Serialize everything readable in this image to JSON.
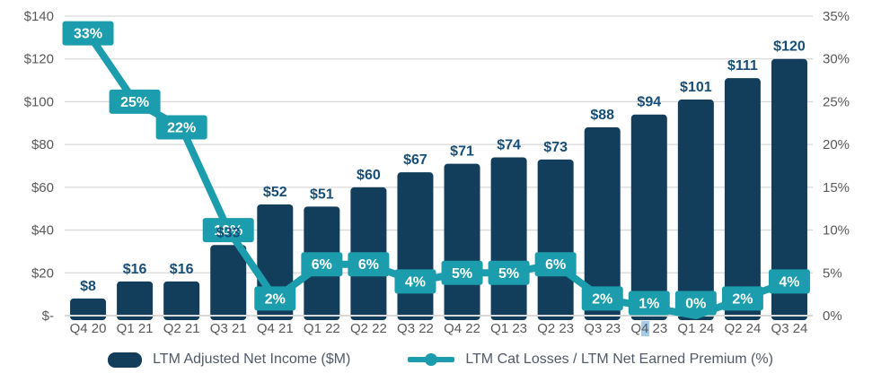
{
  "chart_data": {
    "type": "combo",
    "title": "",
    "categories": [
      "Q4 20",
      "Q1 21",
      "Q2 21",
      "Q3 21",
      "Q4 21",
      "Q1 22",
      "Q2 22",
      "Q3 22",
      "Q4 22",
      "Q1 23",
      "Q2 23",
      "Q3 23",
      "Q4 23",
      "Q1 24",
      "Q2 24",
      "Q3 24"
    ],
    "series": [
      {
        "name": "LTM Adjusted Net Income ($M)",
        "type": "bar",
        "axis": "left",
        "color": "#123E5B",
        "values": [
          8,
          16,
          16,
          33,
          52,
          51,
          60,
          67,
          71,
          74,
          73,
          88,
          94,
          101,
          111,
          120
        ],
        "labels": [
          "$8",
          "$16",
          "$16",
          "$33",
          "$52",
          "$51",
          "$60",
          "$67",
          "$71",
          "$74",
          "$73",
          "$88",
          "$94",
          "$101",
          "$111",
          "$120"
        ]
      },
      {
        "name": "LTM Cat Losses / LTM Net Earned Premium (%)",
        "type": "line",
        "axis": "right",
        "color": "#1B9DAD",
        "values": [
          33,
          25,
          22,
          10,
          2,
          6,
          6,
          4,
          5,
          5,
          6,
          2,
          1,
          0,
          2,
          4
        ],
        "labels": [
          "33%",
          "25%",
          "22%",
          "10%",
          "2%",
          "6%",
          "6%",
          "4%",
          "5%",
          "5%",
          "6%",
          "2%",
          "1%",
          "0%",
          "2%",
          "4%"
        ]
      }
    ],
    "left_axis": {
      "label": "",
      "min": 0,
      "max": 140,
      "ticks": [
        "$140",
        "$120",
        "$100",
        "$80",
        "$60",
        "$40",
        "$20",
        "$-"
      ]
    },
    "right_axis": {
      "label": "",
      "min": 0,
      "max": 35,
      "ticks": [
        "35%",
        "30%",
        "25%",
        "20%",
        "15%",
        "10%",
        "5%",
        "0%"
      ]
    },
    "grid": true,
    "legend_position": "bottom",
    "x_label_highlight": {
      "category_index": 12,
      "char_index": 1,
      "color": "#A6CAEA"
    }
  },
  "legend": {
    "items": [
      {
        "label": "LTM Adjusted Net Income ($M)",
        "swatch": "bar-swatch"
      },
      {
        "label": "LTM Cat Losses / LTM Net Earned Premium (%)",
        "swatch": "line-swatch"
      }
    ]
  },
  "colors": {
    "bar": "#123E5B",
    "bar_label": "#174E77",
    "line": "#1B9DAD",
    "grid": "#D9D9D9",
    "axis_text": "#595959",
    "legend_text": "#505A68",
    "background": "#FFFFFF"
  }
}
